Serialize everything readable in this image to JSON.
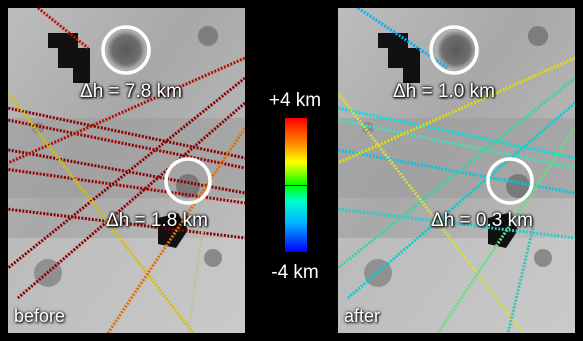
{
  "panels": {
    "before": {
      "corner_label": "before",
      "annotation_top": "Δh = 7.8 km",
      "annotation_bottom": "Δh = 1.8 km"
    },
    "after": {
      "corner_label": "after",
      "annotation_top": "Δh = 1.0 km",
      "annotation_bottom": "Δh = 0.3 km"
    }
  },
  "colorbar": {
    "max_label": "+4 km",
    "min_label": "-4 km",
    "colors": [
      "#ff0000",
      "#ffff00",
      "#00ff00",
      "#00ffff",
      "#0000ff"
    ]
  }
}
